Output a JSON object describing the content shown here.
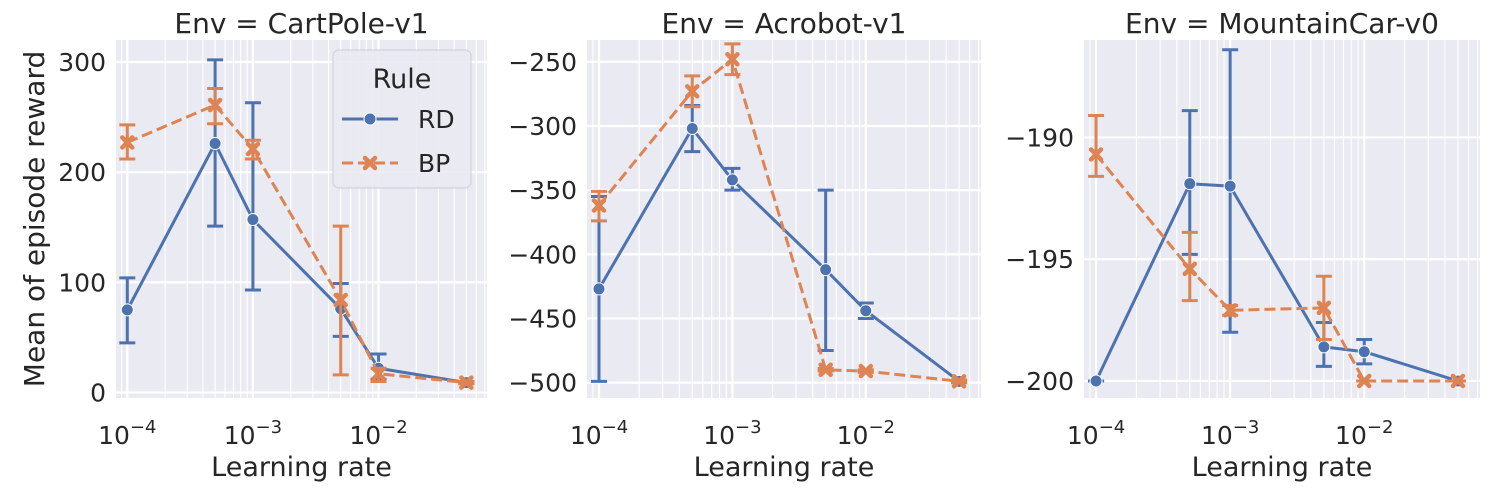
{
  "figure": {
    "ylabel": "Mean of episode reward",
    "legend": {
      "title": "Rule",
      "placement": "top-right of first panel",
      "entries": [
        {
          "name": "RD",
          "color": "#4c72b0",
          "marker": "circle",
          "linestyle": "solid"
        },
        {
          "name": "BP",
          "color": "#dd8452",
          "marker": "x",
          "linestyle": "dashed"
        }
      ]
    },
    "colors": {
      "RD": "#4c72b0",
      "BP": "#dd8452",
      "background": "#eaeaf2",
      "grid": "#ffffff"
    }
  },
  "chart_data": [
    {
      "type": "line",
      "title": "Env = CartPole-v1",
      "xlabel": "Learning rate",
      "ylabel": "Mean of episode reward",
      "xscale": "log",
      "xlim": [
        8.13e-05,
        0.073
      ],
      "ylim": [
        -5,
        320
      ],
      "xticks": [
        {
          "v": 0.0001,
          "label": "10^-4"
        },
        {
          "v": 0.001,
          "label": "10^-3"
        },
        {
          "v": 0.01,
          "label": "10^-2"
        }
      ],
      "yticks": [
        {
          "v": 0,
          "label": "0"
        },
        {
          "v": 100,
          "label": "100"
        },
        {
          "v": 200,
          "label": "200"
        },
        {
          "v": 300,
          "label": "300"
        }
      ],
      "grid": true,
      "series": [
        {
          "name": "RD",
          "x": [
            0.0001,
            0.0005,
            0.001,
            0.005,
            0.01,
            0.05
          ],
          "y": [
            75,
            226,
            157,
            76,
            22,
            9
          ],
          "err_low": [
            45,
            151,
            93,
            51,
            12,
            8
          ],
          "err_high": [
            104,
            302,
            263,
            99,
            35,
            10
          ]
        },
        {
          "name": "BP",
          "x": [
            0.0001,
            0.0005,
            0.001,
            0.005,
            0.01,
            0.05
          ],
          "y": [
            227,
            261,
            221,
            84,
            17,
            9
          ],
          "err_low": [
            212,
            244,
            212,
            16,
            10,
            8
          ],
          "err_high": [
            243,
            276,
            229,
            151,
            22,
            10
          ]
        }
      ]
    },
    {
      "type": "line",
      "title": "Env = Acrobot-v1",
      "xlabel": "Learning rate",
      "ylabel": "",
      "xscale": "log",
      "xlim": [
        8.13e-05,
        0.073
      ],
      "ylim": [
        -512,
        -233
      ],
      "xticks": [
        {
          "v": 0.0001,
          "label": "10^-4"
        },
        {
          "v": 0.001,
          "label": "10^-3"
        },
        {
          "v": 0.01,
          "label": "10^-2"
        }
      ],
      "yticks": [
        {
          "v": -500,
          "label": "−500"
        },
        {
          "v": -450,
          "label": "−450"
        },
        {
          "v": -400,
          "label": "−400"
        },
        {
          "v": -350,
          "label": "−350"
        },
        {
          "v": -300,
          "label": "−300"
        },
        {
          "v": -250,
          "label": "−250"
        }
      ],
      "grid": true,
      "series": [
        {
          "name": "RD",
          "x": [
            0.0001,
            0.0005,
            0.001,
            0.005,
            0.01,
            0.05
          ],
          "y": [
            -427,
            -302,
            -342,
            -412,
            -444,
            -499
          ],
          "err_low": [
            -499,
            -320,
            -350,
            -475,
            -450,
            -500
          ],
          "err_high": [
            -355,
            -284,
            -333,
            -350,
            -438,
            -498
          ]
        },
        {
          "name": "BP",
          "x": [
            0.0001,
            0.0005,
            0.001,
            0.005,
            0.01,
            0.05
          ],
          "y": [
            -362,
            -273,
            -248,
            -490,
            -491,
            -499
          ],
          "err_low": [
            -374,
            -285,
            -260,
            -491,
            -492,
            -500
          ],
          "err_high": [
            -351,
            -261,
            -236,
            -489,
            -490,
            -498
          ]
        }
      ]
    },
    {
      "type": "line",
      "title": "Env = MountainCar-v0",
      "xlabel": "Learning rate",
      "ylabel": "",
      "xscale": "log",
      "xlim": [
        8.13e-05,
        0.073
      ],
      "ylim": [
        -200.7,
        -186.0
      ],
      "xticks": [
        {
          "v": 0.0001,
          "label": "10^-4"
        },
        {
          "v": 0.001,
          "label": "10^-3"
        },
        {
          "v": 0.01,
          "label": "10^-2"
        }
      ],
      "yticks": [
        {
          "v": -200,
          "label": "−200"
        },
        {
          "v": -195,
          "label": "−195"
        },
        {
          "v": -190,
          "label": "−190"
        }
      ],
      "grid": true,
      "series": [
        {
          "name": "RD",
          "x": [
            0.0001,
            0.0005,
            0.001,
            0.005,
            0.01,
            0.05
          ],
          "y": [
            -200,
            -191.9,
            -192.0,
            -198.6,
            -198.8,
            -200
          ],
          "err_low": [
            -200,
            -194.8,
            -198.0,
            -199.4,
            -199.3,
            -200
          ],
          "err_high": [
            -200,
            -188.9,
            -186.4,
            -197.6,
            -198.3,
            -200
          ]
        },
        {
          "name": "BP",
          "x": [
            0.0001,
            0.0005,
            0.001,
            0.005,
            0.01,
            0.05
          ],
          "y": [
            -190.7,
            -195.4,
            -197.1,
            -197.0,
            -200,
            -200
          ],
          "err_low": [
            -191.6,
            -196.7,
            -197.3,
            -198.3,
            -200,
            -200
          ],
          "err_high": [
            -189.1,
            -193.9,
            -196.9,
            -195.7,
            -200,
            -200
          ]
        }
      ]
    }
  ]
}
